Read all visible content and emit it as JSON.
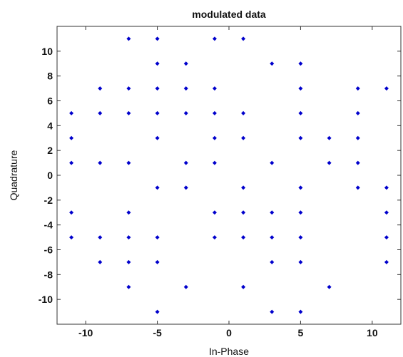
{
  "chart_data": {
    "type": "scatter",
    "title": "modulated data",
    "xlabel": "In-Phase",
    "ylabel": "Quadrature",
    "xlim": [
      -12,
      12
    ],
    "ylim": [
      -12,
      12
    ],
    "xticks": [
      -10,
      -5,
      0,
      5,
      10
    ],
    "yticks": [
      -10,
      -8,
      -6,
      -4,
      -2,
      0,
      2,
      4,
      6,
      8,
      10
    ],
    "grid": false,
    "marker_color": "#0000cc",
    "points": [
      [
        -7,
        11
      ],
      [
        -5,
        11
      ],
      [
        -1,
        11
      ],
      [
        1,
        11
      ],
      [
        -5,
        9
      ],
      [
        -3,
        9
      ],
      [
        3,
        9
      ],
      [
        5,
        9
      ],
      [
        -9,
        7
      ],
      [
        -7,
        7
      ],
      [
        -5,
        7
      ],
      [
        -3,
        7
      ],
      [
        -1,
        7
      ],
      [
        5,
        7
      ],
      [
        9,
        7
      ],
      [
        11,
        7
      ],
      [
        -11,
        5
      ],
      [
        -9,
        5
      ],
      [
        -7,
        5
      ],
      [
        -5,
        5
      ],
      [
        -3,
        5
      ],
      [
        -1,
        5
      ],
      [
        1,
        5
      ],
      [
        5,
        5
      ],
      [
        9,
        5
      ],
      [
        -11,
        3
      ],
      [
        -5,
        3
      ],
      [
        -1,
        3
      ],
      [
        1,
        3
      ],
      [
        5,
        3
      ],
      [
        7,
        3
      ],
      [
        9,
        3
      ],
      [
        -11,
        1
      ],
      [
        -9,
        1
      ],
      [
        -7,
        1
      ],
      [
        -3,
        1
      ],
      [
        -1,
        1
      ],
      [
        3,
        1
      ],
      [
        7,
        1
      ],
      [
        9,
        1
      ],
      [
        -5,
        -1
      ],
      [
        -3,
        -1
      ],
      [
        1,
        -1
      ],
      [
        5,
        -1
      ],
      [
        9,
        -1
      ],
      [
        11,
        -1
      ],
      [
        -11,
        -3
      ],
      [
        -7,
        -3
      ],
      [
        -1,
        -3
      ],
      [
        1,
        -3
      ],
      [
        3,
        -3
      ],
      [
        5,
        -3
      ],
      [
        11,
        -3
      ],
      [
        -11,
        -5
      ],
      [
        -9,
        -5
      ],
      [
        -7,
        -5
      ],
      [
        -5,
        -5
      ],
      [
        -1,
        -5
      ],
      [
        1,
        -5
      ],
      [
        3,
        -5
      ],
      [
        5,
        -5
      ],
      [
        11,
        -5
      ],
      [
        -9,
        -7
      ],
      [
        -7,
        -7
      ],
      [
        -5,
        -7
      ],
      [
        3,
        -7
      ],
      [
        5,
        -7
      ],
      [
        11,
        -7
      ],
      [
        -7,
        -9
      ],
      [
        -3,
        -9
      ],
      [
        1,
        -9
      ],
      [
        7,
        -9
      ],
      [
        -5,
        -11
      ],
      [
        3,
        -11
      ],
      [
        5,
        -11
      ]
    ]
  }
}
